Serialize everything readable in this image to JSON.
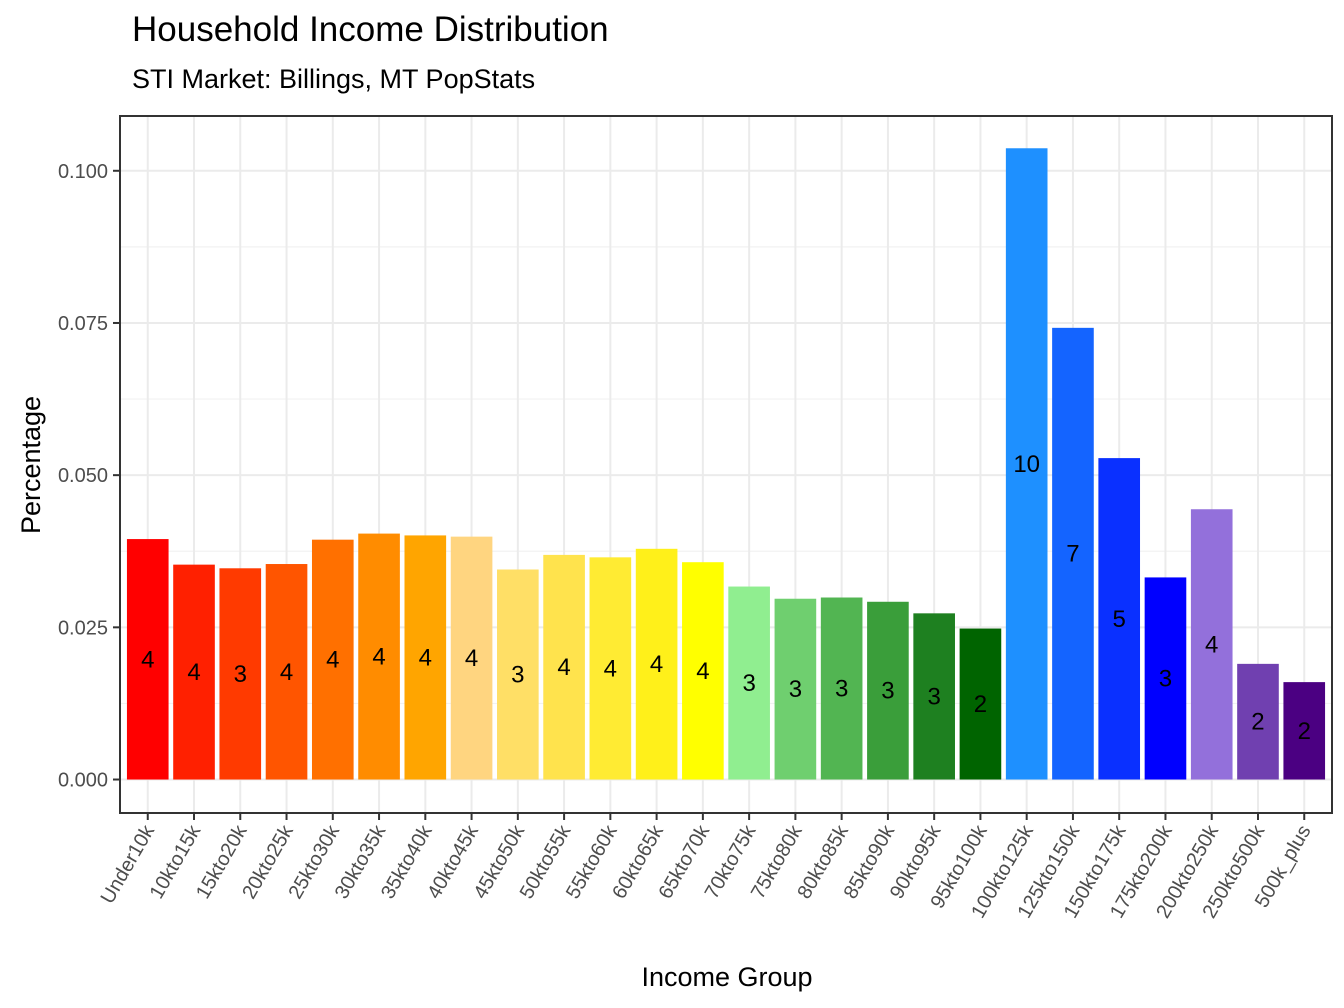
{
  "chart_data": {
    "type": "bar",
    "title": "Household Income Distribution",
    "subtitle": "STI Market: Billings, MT PopStats",
    "xlabel": "Income Group",
    "ylabel": "Percentage",
    "ylim": [
      -0.0055,
      0.109
    ],
    "y_ticks": [
      "0.000",
      "0.025",
      "0.050",
      "0.075",
      "0.100"
    ],
    "y_tick_values": [
      0,
      0.025,
      0.05,
      0.075,
      0.1
    ],
    "grid": true,
    "legend": "none",
    "categories": [
      "Under10k",
      "10kto15k",
      "15kto20k",
      "20kto25k",
      "25kto30k",
      "30kto35k",
      "35kto40k",
      "40kto45k",
      "45kto50k",
      "50kto55k",
      "55kto60k",
      "60kto65k",
      "65kto70k",
      "70kto75k",
      "75kto80k",
      "80kto85k",
      "85kto90k",
      "90kto95k",
      "95kto100k",
      "100kto125k",
      "125kto150k",
      "150kto175k",
      "175kto200k",
      "200kto250k",
      "250kto500k",
      "500k_plus"
    ],
    "values": [
      0.0395,
      0.0353,
      0.0347,
      0.0354,
      0.0394,
      0.0404,
      0.0401,
      0.0399,
      0.0345,
      0.0369,
      0.0365,
      0.0379,
      0.0357,
      0.0317,
      0.0297,
      0.0299,
      0.0292,
      0.0273,
      0.0248,
      0.1037,
      0.0742,
      0.0528,
      0.0332,
      0.0444,
      0.019,
      0.016
    ],
    "bar_labels": [
      "4",
      "4",
      "3",
      "4",
      "4",
      "4",
      "4",
      "4",
      "3",
      "4",
      "4",
      "4",
      "4",
      "3",
      "3",
      "3",
      "3",
      "3",
      "2",
      "10",
      "7",
      "5",
      "3",
      "4",
      "2",
      "2"
    ],
    "colors": [
      "#FF0000",
      "#FF2000",
      "#FF3A00",
      "#FF5500",
      "#FF7000",
      "#FF8C00",
      "#FFA500",
      "#FFD580",
      "#FFDF66",
      "#FFE34D",
      "#FFEB33",
      "#FFF01A",
      "#FFFF00",
      "#90EE90",
      "#6FCF6F",
      "#52B552",
      "#3A9E3A",
      "#1E8020",
      "#006400",
      "#1E90FF",
      "#1464FF",
      "#0A30FF",
      "#0000FF",
      "#9370DB",
      "#7040B0",
      "#4B0082"
    ]
  }
}
